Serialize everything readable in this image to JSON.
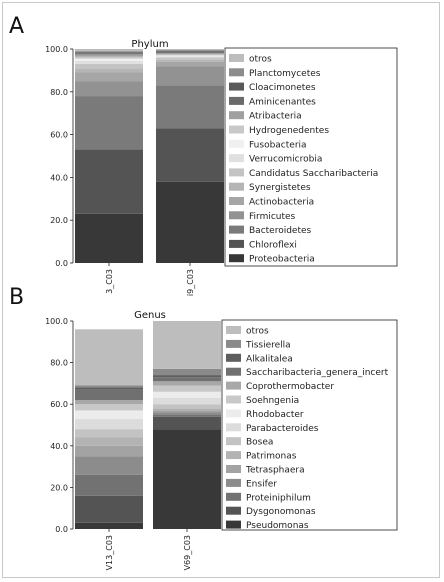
{
  "chart_data": [
    {
      "type": "bar",
      "stacked": true,
      "panel_label": "A",
      "title": "Phylum",
      "categories": [
        "3_C03",
        "i9_C03"
      ],
      "ylim": [
        0,
        100
      ],
      "yticks": [
        "0.0",
        "20.0",
        "40.0",
        "60.0",
        "80.0",
        "100.0"
      ],
      "legend_position": "right",
      "series": [
        {
          "name": "Proteobacteria",
          "values": [
            23,
            38
          ],
          "color": "#383838"
        },
        {
          "name": "Chloroflexi",
          "values": [
            30,
            25
          ],
          "color": "#545454"
        },
        {
          "name": "Bacteroidetes",
          "values": [
            25,
            20
          ],
          "color": "#7a7a7a"
        },
        {
          "name": "Firmicutes",
          "values": [
            7,
            9
          ],
          "color": "#929292"
        },
        {
          "name": "Actinobacteria",
          "values": [
            4,
            2
          ],
          "color": "#a6a6a6"
        },
        {
          "name": "Synergistetes",
          "values": [
            2,
            1
          ],
          "color": "#b5b5b5"
        },
        {
          "name": "Candidatus Saccharibacteria",
          "values": [
            2,
            1
          ],
          "color": "#c4c4c4"
        },
        {
          "name": "Verrucomicrobia",
          "values": [
            1.5,
            0.5
          ],
          "color": "#e0e0e0"
        },
        {
          "name": "Fusobacteria",
          "values": [
            1,
            0.5
          ],
          "color": "#f0f0f0"
        },
        {
          "name": "Hydrogenedentes",
          "values": [
            1,
            0.5
          ],
          "color": "#c8c8c8"
        },
        {
          "name": "Atribacteria",
          "values": [
            1,
            0.5
          ],
          "color": "#a0a0a0"
        },
        {
          "name": "Aminicenantes",
          "values": [
            0.5,
            0.5
          ],
          "color": "#6a6a6a"
        },
        {
          "name": "Cloacimonetes",
          "values": [
            0.5,
            0.5
          ],
          "color": "#5a5a5a"
        },
        {
          "name": "Planctomycetes",
          "values": [
            0.5,
            0.5
          ],
          "color": "#8c8c8c"
        },
        {
          "name": "otros",
          "values": [
            1,
            0.5
          ],
          "color": "#bdbdbd"
        }
      ]
    },
    {
      "type": "bar",
      "stacked": true,
      "panel_label": "B",
      "title": "Genus",
      "categories": [
        "V13_C03",
        "V69_C03"
      ],
      "ylim": [
        0,
        100
      ],
      "yticks": [
        "0.0",
        "20.0",
        "40.0",
        "60.0",
        "80.0",
        "100.0"
      ],
      "legend_position": "right",
      "series": [
        {
          "name": "Pseudomonas",
          "values": [
            3,
            48
          ],
          "color": "#383838"
        },
        {
          "name": "Dysgonomonas",
          "values": [
            13,
            6
          ],
          "color": "#545454"
        },
        {
          "name": "Proteiniphilum",
          "values": [
            10,
            1
          ],
          "color": "#727272"
        },
        {
          "name": "Ensifer",
          "values": [
            9,
            1
          ],
          "color": "#8c8c8c"
        },
        {
          "name": "Tetrasphaera",
          "values": [
            5,
            1
          ],
          "color": "#a3a3a3"
        },
        {
          "name": "Patrimonas",
          "values": [
            4,
            1
          ],
          "color": "#b3b3b3"
        },
        {
          "name": "Bosea",
          "values": [
            4,
            2
          ],
          "color": "#c3c3c3"
        },
        {
          "name": "Parabacteroides",
          "values": [
            5,
            3
          ],
          "color": "#dcdcdc"
        },
        {
          "name": "Rhodobacter",
          "values": [
            4,
            3
          ],
          "color": "#ececec"
        },
        {
          "name": "Soehngenia",
          "values": [
            3,
            3
          ],
          "color": "#c8c8c8"
        },
        {
          "name": "Coprothermobacter",
          "values": [
            2,
            2
          ],
          "color": "#a8a8a8"
        },
        {
          "name": "Saccharibacteria_genera_incert",
          "values": [
            5,
            2
          ],
          "color": "#707070"
        },
        {
          "name": "Alkalitalea",
          "values": [
            1,
            1
          ],
          "color": "#5e5e5e"
        },
        {
          "name": "Tissierella",
          "values": [
            1,
            3
          ],
          "color": "#8a8a8a"
        },
        {
          "name": "otros",
          "values": [
            27,
            23
          ],
          "color": "#bdbdbd"
        }
      ]
    }
  ]
}
